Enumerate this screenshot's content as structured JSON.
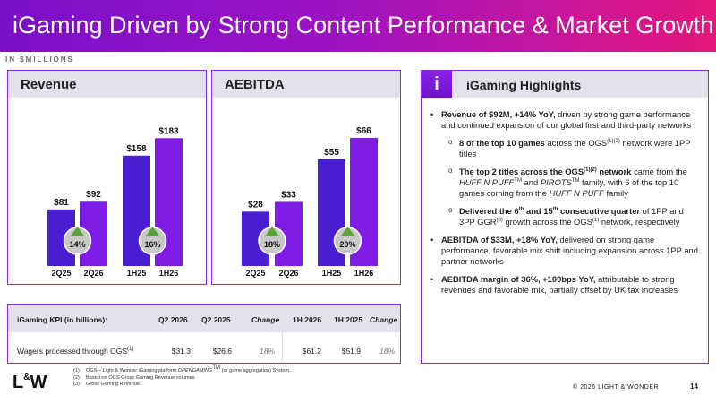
{
  "header": {
    "title": "iGaming Driven by Strong Content Performance & Market Growth"
  },
  "subhead": "IN $MILLIONS",
  "revenue_panel": {
    "title": "Revenue"
  },
  "aebitda_panel": {
    "title": "AEBITDA"
  },
  "colors": {
    "prior": "#4a1fd1",
    "current": "#7f1de6",
    "growth_circle": "#c8c8c8",
    "growth_arrow": "#5aa33a",
    "border": "#8a2be2",
    "header_gray": "#e2e2ea"
  },
  "chart_data": [
    {
      "type": "bar",
      "title": "Revenue",
      "categories": [
        "2Q25",
        "2Q26",
        "1H25",
        "1H26"
      ],
      "values": [
        81,
        92,
        158,
        183
      ],
      "value_labels": [
        "$81",
        "$92",
        "$158",
        "$183"
      ],
      "growth": [
        {
          "label": "14%",
          "between": [
            "2Q25",
            "2Q26"
          ]
        },
        {
          "label": "16%",
          "between": [
            "1H25",
            "1H26"
          ]
        }
      ],
      "ylim": [
        0,
        200
      ]
    },
    {
      "type": "bar",
      "title": "AEBITDA",
      "categories": [
        "2Q25",
        "2Q26",
        "1H25",
        "1H26"
      ],
      "values": [
        28,
        33,
        55,
        66
      ],
      "value_labels": [
        "$28",
        "$33",
        "$55",
        "$66"
      ],
      "growth": [
        {
          "label": "18%",
          "between": [
            "2Q25",
            "2Q26"
          ]
        },
        {
          "label": "20%",
          "between": [
            "1H25",
            "1H26"
          ]
        }
      ],
      "ylim": [
        0,
        72
      ]
    }
  ],
  "kpi": {
    "headers": [
      "iGaming KPI (in billions):",
      "Q2 2026",
      "Q2 2025",
      "Change",
      "1H 2026",
      "1H 2025",
      "Change"
    ],
    "row": {
      "label": "Wagers processed through OGS",
      "label_sup": "(1)",
      "values": [
        "$31.3",
        "$26.6",
        "18%",
        "$61.2",
        "$51.9",
        "18%"
      ]
    }
  },
  "highlights": {
    "icon": "i",
    "title": "iGaming Highlights",
    "b1_bold": "Revenue of $92M, +14% YoY,",
    "b1_text": " driven by strong game performance and continued expansion of our global first and third-party networks",
    "s1_bold": "8 of the top 10 games",
    "s1_a": " across the OGS",
    "s1_sup": "(1)(2)",
    "s1_b": " network were 1PP titles",
    "s2_bold_a": "The top 2 titles across the OGS",
    "s2_sup": "(1)(2)",
    "s2_bold_b": " network",
    "s2_a": " came from the ",
    "s2_huff": "HUFF N PUFF",
    "s2_tm1": "TM",
    "s2_and": " and ",
    "s2_pirots": "PIROTS",
    "s2_tm2": "TM",
    "s2_b": " family, with 6 of the top 10 games coming from the ",
    "s2_huff2": "HUFF N PUFF",
    "s2_c": "  family",
    "s3_bold_a": "Delivered the 6",
    "s3_th1": "th",
    "s3_bold_b": " and 15",
    "s3_th2": "th",
    "s3_bold_c": " consecutive quarter",
    "s3_a": " of 1PP and 3PP GGR",
    "s3_sup1": "(3)",
    "s3_b": " growth across the OGS",
    "s3_sup2": "(1)",
    "s3_c": " network, respectively",
    "b2_bold": "AEBITDA of $33M, +18% YoY,",
    "b2_text": " delivered on strong game performance, favorable mix shift including expansion across 1PP and partner networks",
    "b3_bold": "AEBITDA margin of 36%, +100bps YoY,",
    "b3_text": " attributable to strong revenues and favorable mix, partially offset by UK tax increases"
  },
  "footer": {
    "logo_l": "L",
    "logo_amp": "&",
    "logo_w": "W",
    "fn1_num": "(1)",
    "fn1_a": "OGS – Light & Wonder iGaming platform ",
    "fn1_italic": "OPENGAMING",
    "fn1_tm": "TM",
    "fn1_b": " (or game aggregation) System.",
    "fn2_num": "(2)",
    "fn2": "Based on OGS Gross Gaming Revenue volumes.",
    "fn3_num": "(3)",
    "fn3": "Gross Gaming Revenue.",
    "copyright": "© 2026 LIGHT & WONDER",
    "page": "14"
  }
}
